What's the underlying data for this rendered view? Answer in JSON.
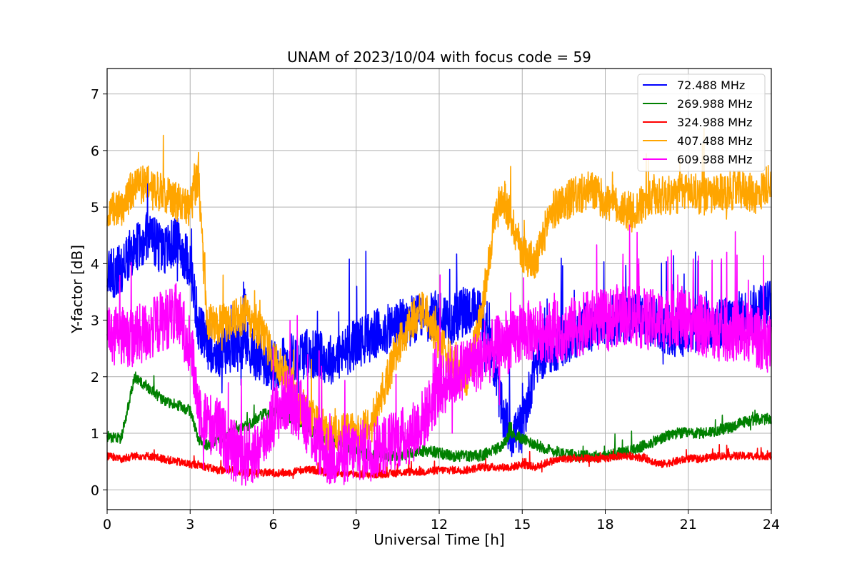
{
  "chart_data": {
    "type": "line",
    "title": "UNAM of 2023/10/04 with focus code = 59",
    "xlabel": "Universal Time [h]",
    "ylabel": "Y-factor [dB]",
    "xlim": [
      0,
      24
    ],
    "ylim": [
      -0.35,
      7.45
    ],
    "xticks": [
      0,
      3,
      6,
      9,
      12,
      15,
      18,
      21,
      24
    ],
    "xtick_labels": [
      "0",
      "3",
      "6",
      "9",
      "12",
      "15",
      "18",
      "21",
      "24"
    ],
    "yticks": [
      0,
      1,
      2,
      3,
      4,
      5,
      6,
      7
    ],
    "ytick_labels": [
      "0",
      "1",
      "2",
      "3",
      "4",
      "5",
      "6",
      "7"
    ],
    "grid": true,
    "legend_position": "top-right",
    "x": [
      0,
      0.5,
      1,
      1.5,
      2,
      2.5,
      3,
      3.3,
      3.6,
      4,
      4.5,
      5,
      5.5,
      6,
      6.5,
      7,
      7.5,
      8,
      8.5,
      9,
      9.5,
      10,
      10.5,
      11,
      11.5,
      12,
      12.5,
      13,
      13.5,
      14,
      14.3,
      14.6,
      15,
      15.5,
      16,
      16.5,
      17,
      17.5,
      18,
      18.5,
      19,
      19.5,
      20,
      20.5,
      21,
      21.5,
      22,
      22.5,
      23,
      23.5,
      24
    ],
    "series": [
      {
        "name": "72.488 MHz",
        "color": "#0000ff",
        "values": [
          3.8,
          3.9,
          4.3,
          4.5,
          4.2,
          4.4,
          4.0,
          2.9,
          2.6,
          2.4,
          2.5,
          2.6,
          2.3,
          2.2,
          2.3,
          2.4,
          2.4,
          2.3,
          2.4,
          2.6,
          2.7,
          2.8,
          2.9,
          3.0,
          3.0,
          3.1,
          3.0,
          3.2,
          3.1,
          2.2,
          1.3,
          1.0,
          1.1,
          2.3,
          2.5,
          2.6,
          2.8,
          2.9,
          3.0,
          3.0,
          3.1,
          3.0,
          2.9,
          2.8,
          2.8,
          2.9,
          2.9,
          3.0,
          3.1,
          3.2,
          3.3
        ],
        "noise": 0.45
      },
      {
        "name": "269.988 MHz",
        "color": "#008000",
        "values": [
          0.95,
          0.9,
          2.0,
          1.8,
          1.6,
          1.5,
          1.4,
          0.9,
          0.8,
          0.9,
          1.0,
          1.1,
          1.3,
          1.4,
          1.3,
          1.2,
          1.0,
          0.9,
          0.8,
          0.7,
          0.6,
          0.6,
          0.6,
          0.65,
          0.7,
          0.65,
          0.6,
          0.6,
          0.6,
          0.7,
          0.8,
          1.0,
          0.9,
          0.8,
          0.7,
          0.65,
          0.6,
          0.6,
          0.6,
          0.65,
          0.7,
          0.8,
          0.9,
          1.0,
          1.0,
          1.0,
          1.05,
          1.1,
          1.2,
          1.25,
          1.25
        ],
        "noise": 0.1
      },
      {
        "name": "324.988 MHz",
        "color": "#ff0000",
        "values": [
          0.6,
          0.55,
          0.6,
          0.6,
          0.55,
          0.5,
          0.45,
          0.45,
          0.4,
          0.35,
          0.35,
          0.3,
          0.3,
          0.3,
          0.3,
          0.35,
          0.35,
          0.3,
          0.3,
          0.28,
          0.27,
          0.28,
          0.3,
          0.32,
          0.32,
          0.35,
          0.35,
          0.35,
          0.4,
          0.4,
          0.4,
          0.4,
          0.45,
          0.4,
          0.5,
          0.55,
          0.55,
          0.55,
          0.55,
          0.6,
          0.6,
          0.55,
          0.45,
          0.5,
          0.55,
          0.55,
          0.6,
          0.6,
          0.6,
          0.6,
          0.6
        ],
        "noise": 0.07
      },
      {
        "name": "407.488 MHz",
        "color": "#ffa500",
        "values": [
          4.9,
          5.0,
          5.4,
          5.4,
          5.3,
          5.1,
          5.0,
          5.6,
          3.0,
          2.9,
          3.0,
          3.1,
          2.8,
          2.4,
          2.0,
          1.5,
          1.2,
          1.0,
          1.0,
          1.0,
          1.1,
          1.8,
          2.5,
          3.0,
          3.2,
          2.6,
          2.2,
          2.0,
          3.0,
          4.8,
          5.2,
          4.8,
          4.2,
          4.0,
          4.9,
          5.1,
          5.2,
          5.3,
          5.1,
          5.0,
          4.9,
          5.1,
          5.2,
          5.2,
          5.3,
          5.2,
          5.2,
          5.3,
          5.3,
          5.2,
          5.5
        ],
        "noise": 0.35
      },
      {
        "name": "609.988 MHz",
        "color": "#ff00ff",
        "values": [
          2.8,
          2.7,
          2.7,
          2.8,
          3.0,
          3.1,
          2.6,
          1.5,
          1.2,
          1.1,
          0.7,
          0.6,
          0.7,
          1.3,
          1.6,
          1.4,
          0.9,
          0.6,
          0.6,
          0.7,
          0.7,
          0.8,
          0.9,
          1.0,
          1.3,
          1.8,
          2.0,
          2.2,
          2.3,
          2.5,
          2.6,
          2.6,
          2.8,
          2.8,
          2.8,
          2.8,
          2.9,
          3.0,
          3.0,
          3.1,
          3.1,
          3.0,
          3.0,
          3.1,
          3.0,
          2.9,
          2.8,
          2.8,
          2.8,
          2.7,
          2.6
        ],
        "noise": 0.55
      }
    ]
  },
  "legend": {
    "items": [
      {
        "label": "  72.488 MHz",
        "color": "#0000ff"
      },
      {
        "label": "269.988 MHz",
        "color": "#008000"
      },
      {
        "label": "324.988 MHz",
        "color": "#ff0000"
      },
      {
        "label": "407.488 MHz",
        "color": "#ffa500"
      },
      {
        "label": "609.988 MHz",
        "color": "#ff00ff"
      }
    ]
  }
}
